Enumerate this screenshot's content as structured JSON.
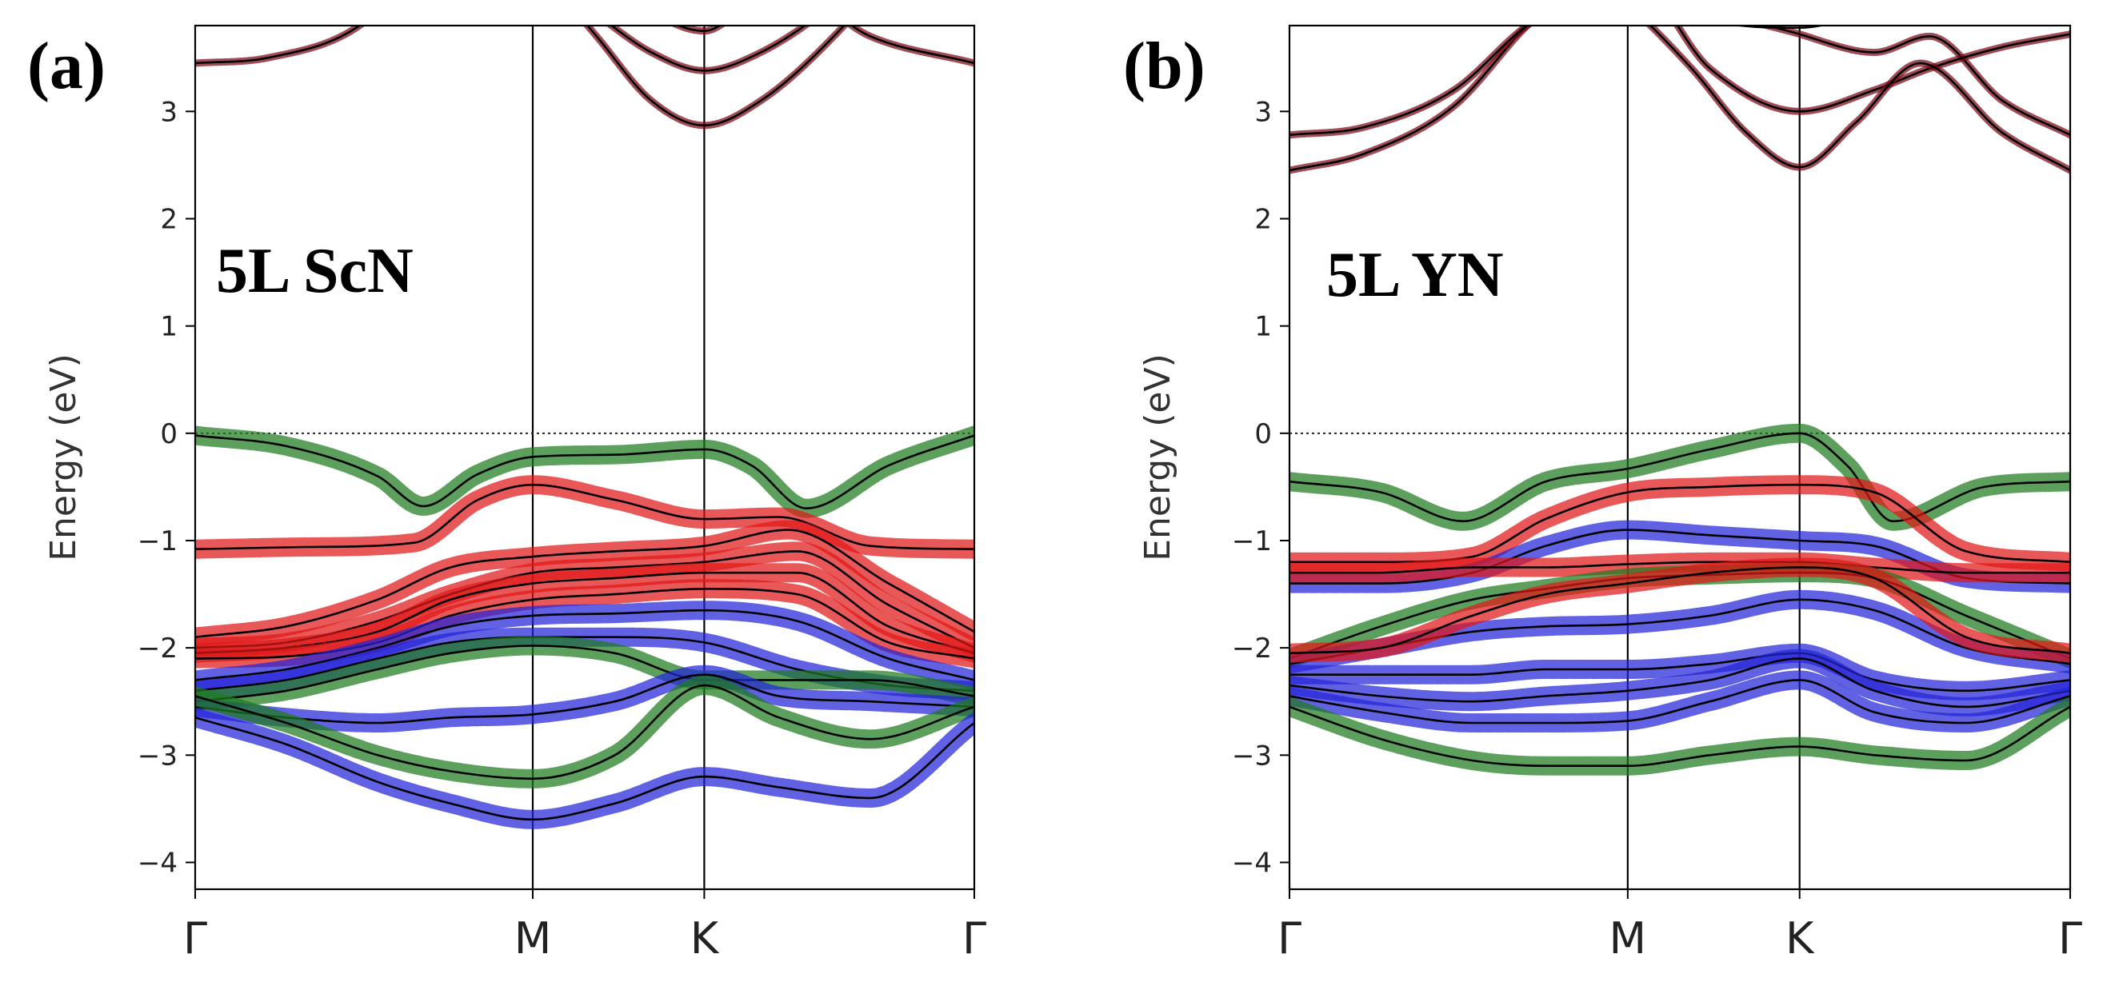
{
  "chart_data": [
    {
      "type": "line",
      "panel_label": "(a)",
      "annotation": "5L ScN",
      "ylabel": "Energy (eV)",
      "ylim": [
        -4.25,
        3.8
      ],
      "yticks": [
        3,
        2,
        1,
        0,
        -1,
        -2,
        -3,
        -4
      ],
      "ytick_labels": [
        "3",
        "2",
        "1",
        "0",
        "−1",
        "−2",
        "−3",
        "−4"
      ],
      "x_ticks": [
        0,
        1.85,
        2.79,
        4.27
      ],
      "x_tick_labels": [
        "Γ",
        "M",
        "K",
        "Γ"
      ],
      "xlim": [
        0,
        4.27
      ],
      "fermi_level": 0,
      "grid": false,
      "legend": "none",
      "bands": [
        {
          "color": "#7a0a16",
          "x": [
            0,
            0.4,
            0.9,
            1.3,
            1.85,
            2.3,
            2.79,
            3.2,
            3.7,
            4.27
          ],
          "y": [
            3.45,
            3.5,
            3.8,
            4.5,
            5.0,
            4.2,
            3.75,
            4.2,
            3.7,
            3.45
          ]
        },
        {
          "color": "#7a0a16",
          "x": [
            0.7,
            1.3,
            1.85,
            2.2,
            2.5,
            2.79,
            3.1,
            3.5,
            3.9,
            4.27
          ],
          "y": [
            5.5,
            4.8,
            4.3,
            3.9,
            3.55,
            3.38,
            3.55,
            4.0,
            4.6,
            5.2
          ]
        },
        {
          "color": "#7a0a16",
          "x": [
            0.9,
            1.4,
            1.85,
            2.2,
            2.5,
            2.79,
            3.1,
            3.5,
            3.9,
            4.27
          ],
          "y": [
            5.8,
            5.0,
            4.4,
            3.7,
            3.1,
            2.87,
            3.1,
            3.7,
            4.5,
            5.4
          ]
        },
        {
          "color": "#1e7b1e",
          "x": [
            0,
            0.5,
            1.0,
            1.25,
            1.55,
            1.85,
            2.3,
            2.79,
            3.05,
            3.35,
            3.8,
            4.27
          ],
          "y": [
            -0.02,
            -0.12,
            -0.4,
            -0.68,
            -0.38,
            -0.22,
            -0.2,
            -0.15,
            -0.3,
            -0.7,
            -0.3,
            -0.02
          ]
        },
        {
          "color": "#e01818",
          "x": [
            0,
            0.6,
            1.2,
            1.55,
            1.85,
            2.3,
            2.79,
            3.2,
            3.7,
            4.27
          ],
          "y": [
            -1.08,
            -1.06,
            -1.02,
            -0.62,
            -0.48,
            -0.62,
            -0.8,
            -0.78,
            -1.05,
            -1.08
          ]
        },
        {
          "color": "#e01818",
          "x": [
            0,
            0.5,
            1.0,
            1.4,
            1.85,
            2.3,
            2.79,
            3.25,
            3.8,
            4.27
          ],
          "y": [
            -1.9,
            -1.8,
            -1.55,
            -1.25,
            -1.15,
            -1.1,
            -1.05,
            -0.9,
            -1.4,
            -1.85
          ]
        },
        {
          "color": "#e01818",
          "x": [
            0,
            0.5,
            1.0,
            1.4,
            1.85,
            2.3,
            2.79,
            3.3,
            3.8,
            4.27
          ],
          "y": [
            -2.0,
            -1.95,
            -1.75,
            -1.5,
            -1.3,
            -1.25,
            -1.2,
            -1.1,
            -1.6,
            -2.0
          ]
        },
        {
          "color": "#e01818",
          "x": [
            0,
            0.5,
            1.0,
            1.4,
            1.85,
            2.3,
            2.79,
            3.3,
            3.8,
            4.27
          ],
          "y": [
            -2.05,
            -2.0,
            -1.85,
            -1.55,
            -1.4,
            -1.35,
            -1.3,
            -1.3,
            -1.8,
            -2.05
          ]
        },
        {
          "color": "#e01818",
          "x": [
            0,
            0.5,
            1.0,
            1.4,
            1.85,
            2.3,
            2.79,
            3.3,
            3.8,
            4.27
          ],
          "y": [
            -2.1,
            -2.08,
            -1.95,
            -1.7,
            -1.55,
            -1.5,
            -1.45,
            -1.5,
            -1.95,
            -2.1
          ]
        },
        {
          "color": "#2424d8",
          "x": [
            0,
            0.5,
            1.0,
            1.4,
            1.85,
            2.3,
            2.79,
            3.3,
            3.8,
            4.27
          ],
          "y": [
            -2.3,
            -2.2,
            -2.0,
            -1.8,
            -1.7,
            -1.68,
            -1.65,
            -1.75,
            -2.1,
            -2.3
          ]
        },
        {
          "color": "#2424d8",
          "x": [
            0,
            0.5,
            1.0,
            1.4,
            1.85,
            2.3,
            2.79,
            3.3,
            3.8,
            4.27
          ],
          "y": [
            -2.4,
            -2.3,
            -2.1,
            -1.95,
            -1.9,
            -1.9,
            -1.95,
            -2.2,
            -2.35,
            -2.4
          ]
        },
        {
          "color": "#1e7b1e",
          "x": [
            0,
            0.5,
            1.0,
            1.4,
            1.85,
            2.3,
            2.79,
            3.2,
            3.7,
            4.27
          ],
          "y": [
            -2.5,
            -2.4,
            -2.2,
            -2.05,
            -1.98,
            -2.05,
            -2.3,
            -2.3,
            -2.3,
            -2.45
          ]
        },
        {
          "color": "#2424d8",
          "x": [
            0,
            0.5,
            1.0,
            1.4,
            1.85,
            2.3,
            2.79,
            3.2,
            3.7,
            4.27
          ],
          "y": [
            -2.55,
            -2.65,
            -2.7,
            -2.65,
            -2.62,
            -2.5,
            -2.25,
            -2.45,
            -2.5,
            -2.55
          ]
        },
        {
          "color": "#1e7b1e",
          "x": [
            0,
            0.5,
            1.0,
            1.4,
            1.85,
            2.3,
            2.79,
            3.2,
            3.7,
            4.27
          ],
          "y": [
            -2.45,
            -2.7,
            -3.0,
            -3.15,
            -3.22,
            -3.0,
            -2.35,
            -2.65,
            -2.85,
            -2.55
          ]
        },
        {
          "color": "#2424d8",
          "x": [
            0,
            0.5,
            1.0,
            1.4,
            1.85,
            2.3,
            2.79,
            3.2,
            3.7,
            4.27
          ],
          "y": [
            -2.65,
            -2.9,
            -3.25,
            -3.45,
            -3.6,
            -3.45,
            -3.2,
            -3.3,
            -3.4,
            -2.7
          ]
        }
      ]
    },
    {
      "type": "line",
      "panel_label": "(b)",
      "annotation": "5L YN",
      "ylabel": "Energy (eV)",
      "ylim": [
        -4.25,
        3.8
      ],
      "yticks": [
        3,
        2,
        1,
        0,
        -1,
        -2,
        -3,
        -4
      ],
      "ytick_labels": [
        "3",
        "2",
        "1",
        "0",
        "−1",
        "−2",
        "−3",
        "−4"
      ],
      "x_ticks": [
        0,
        1.85,
        2.79,
        4.27
      ],
      "x_tick_labels": [
        "Γ",
        "M",
        "K",
        "Γ"
      ],
      "xlim": [
        0,
        4.27
      ],
      "fermi_level": 0,
      "grid": false,
      "legend": "none",
      "bands": [
        {
          "color": "#7a0a16",
          "x": [
            0,
            0.4,
            0.9,
            1.3,
            1.85,
            2.3,
            2.79,
            3.2,
            3.5,
            3.9,
            4.27
          ],
          "y": [
            2.45,
            2.6,
            3.05,
            3.8,
            4.6,
            4.0,
            3.72,
            3.55,
            3.7,
            3.1,
            2.78
          ]
        },
        {
          "color": "#7a0a16",
          "x": [
            0,
            0.4,
            0.9,
            1.3,
            1.85,
            2.3,
            2.79,
            3.2,
            3.5,
            3.9,
            4.27
          ],
          "y": [
            2.78,
            2.85,
            3.2,
            3.8,
            4.3,
            3.4,
            3.0,
            3.2,
            3.4,
            3.6,
            3.72
          ]
        },
        {
          "color": "#7a0a16",
          "x": [
            0.9,
            1.4,
            1.85,
            2.2,
            2.5,
            2.79,
            3.1,
            3.45,
            3.9,
            4.27
          ],
          "y": [
            5.3,
            4.6,
            4.0,
            3.4,
            2.8,
            2.48,
            2.9,
            3.45,
            2.8,
            2.45
          ]
        },
        {
          "color": "#1a1a1a",
          "x": [
            1.85,
            2.3,
            2.79,
            3.2,
            3.6
          ],
          "y": [
            4.2,
            3.85,
            3.78,
            3.95,
            4.2
          ]
        },
        {
          "color": "#1e7b1e",
          "x": [
            0,
            0.5,
            0.95,
            1.4,
            1.85,
            2.3,
            2.79,
            3.05,
            3.3,
            3.8,
            4.27
          ],
          "y": [
            -0.45,
            -0.55,
            -0.82,
            -0.45,
            -0.33,
            -0.15,
            0.0,
            -0.3,
            -0.82,
            -0.5,
            -0.45
          ]
        },
        {
          "color": "#e01818",
          "x": [
            0,
            0.5,
            1.0,
            1.4,
            1.85,
            2.3,
            2.79,
            3.2,
            3.7,
            4.27
          ],
          "y": [
            -1.2,
            -1.2,
            -1.15,
            -0.8,
            -0.55,
            -0.5,
            -0.48,
            -0.55,
            -1.1,
            -1.2
          ]
        },
        {
          "color": "#2424d8",
          "x": [
            0,
            0.5,
            1.0,
            1.4,
            1.85,
            2.3,
            2.79,
            3.2,
            3.7,
            4.27
          ],
          "y": [
            -1.4,
            -1.4,
            -1.3,
            -1.05,
            -0.9,
            -0.95,
            -1.0,
            -1.05,
            -1.35,
            -1.4
          ]
        },
        {
          "color": "#e01818",
          "x": [
            0,
            0.5,
            1.0,
            1.4,
            1.85,
            2.3,
            2.79,
            3.2,
            3.7,
            4.27
          ],
          "y": [
            -1.3,
            -1.3,
            -1.25,
            -1.25,
            -1.22,
            -1.2,
            -1.2,
            -1.25,
            -1.3,
            -1.3
          ]
        },
        {
          "color": "#1e7b1e",
          "x": [
            0,
            0.5,
            1.0,
            1.4,
            1.85,
            2.3,
            2.79,
            3.2,
            3.7,
            4.27
          ],
          "y": [
            -2.1,
            -1.8,
            -1.55,
            -1.45,
            -1.35,
            -1.32,
            -1.3,
            -1.35,
            -1.7,
            -2.1
          ]
        },
        {
          "color": "#2424d8",
          "x": [
            0,
            0.5,
            1.0,
            1.4,
            1.85,
            2.3,
            2.79,
            3.2,
            3.7,
            4.27
          ],
          "y": [
            -2.15,
            -2.0,
            -1.85,
            -1.8,
            -1.78,
            -1.7,
            -1.55,
            -1.65,
            -2.0,
            -2.15
          ]
        },
        {
          "color": "#e01818",
          "x": [
            0,
            0.5,
            1.0,
            1.4,
            1.85,
            2.3,
            2.79,
            3.2,
            3.7,
            4.27
          ],
          "y": [
            -2.05,
            -2.0,
            -1.7,
            -1.5,
            -1.4,
            -1.3,
            -1.25,
            -1.35,
            -1.9,
            -2.05
          ]
        },
        {
          "color": "#2424d8",
          "x": [
            0,
            0.5,
            1.0,
            1.4,
            1.85,
            2.3,
            2.79,
            3.2,
            3.7,
            4.27
          ],
          "y": [
            -2.25,
            -2.25,
            -2.25,
            -2.2,
            -2.2,
            -2.15,
            -2.05,
            -2.3,
            -2.4,
            -2.3
          ]
        },
        {
          "color": "#2424d8",
          "x": [
            0,
            0.5,
            1.0,
            1.4,
            1.85,
            2.3,
            2.79,
            3.2,
            3.7,
            4.27
          ],
          "y": [
            -2.35,
            -2.45,
            -2.5,
            -2.45,
            -2.4,
            -2.3,
            -2.1,
            -2.4,
            -2.55,
            -2.4
          ]
        },
        {
          "color": "#2424d8",
          "x": [
            0,
            0.5,
            1.0,
            1.4,
            1.85,
            2.3,
            2.79,
            3.2,
            3.7,
            4.27
          ],
          "y": [
            -2.45,
            -2.6,
            -2.7,
            -2.7,
            -2.68,
            -2.5,
            -2.3,
            -2.6,
            -2.7,
            -2.45
          ]
        },
        {
          "color": "#1e7b1e",
          "x": [
            0,
            0.5,
            1.0,
            1.4,
            1.85,
            2.3,
            2.79,
            3.2,
            3.7,
            4.27
          ],
          "y": [
            -2.55,
            -2.85,
            -3.05,
            -3.1,
            -3.1,
            -3.0,
            -2.92,
            -3.0,
            -3.05,
            -2.55
          ]
        }
      ]
    }
  ]
}
